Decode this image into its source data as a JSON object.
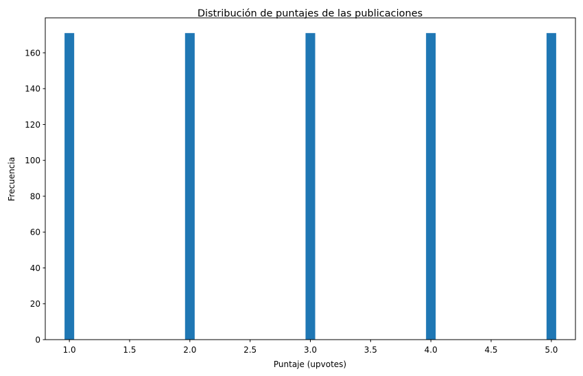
{
  "chart_data": {
    "type": "bar",
    "title": "Distribución de puntajes de las publicaciones",
    "xlabel": "Puntaje (upvotes)",
    "ylabel": "Frecuencia",
    "x": [
      1.0,
      2.0,
      3.0,
      4.0,
      5.0
    ],
    "values": [
      171,
      171,
      171,
      171,
      171
    ],
    "xlim": [
      0.8,
      5.2
    ],
    "ylim": [
      0,
      179.5
    ],
    "xticks": [
      "1.0",
      "1.5",
      "2.0",
      "2.5",
      "3.0",
      "3.5",
      "4.0",
      "4.5",
      "5.0"
    ],
    "yticks": [
      "0",
      "20",
      "40",
      "60",
      "80",
      "100",
      "120",
      "140",
      "160"
    ],
    "grid": false,
    "bar_color": "#1f77b4"
  }
}
